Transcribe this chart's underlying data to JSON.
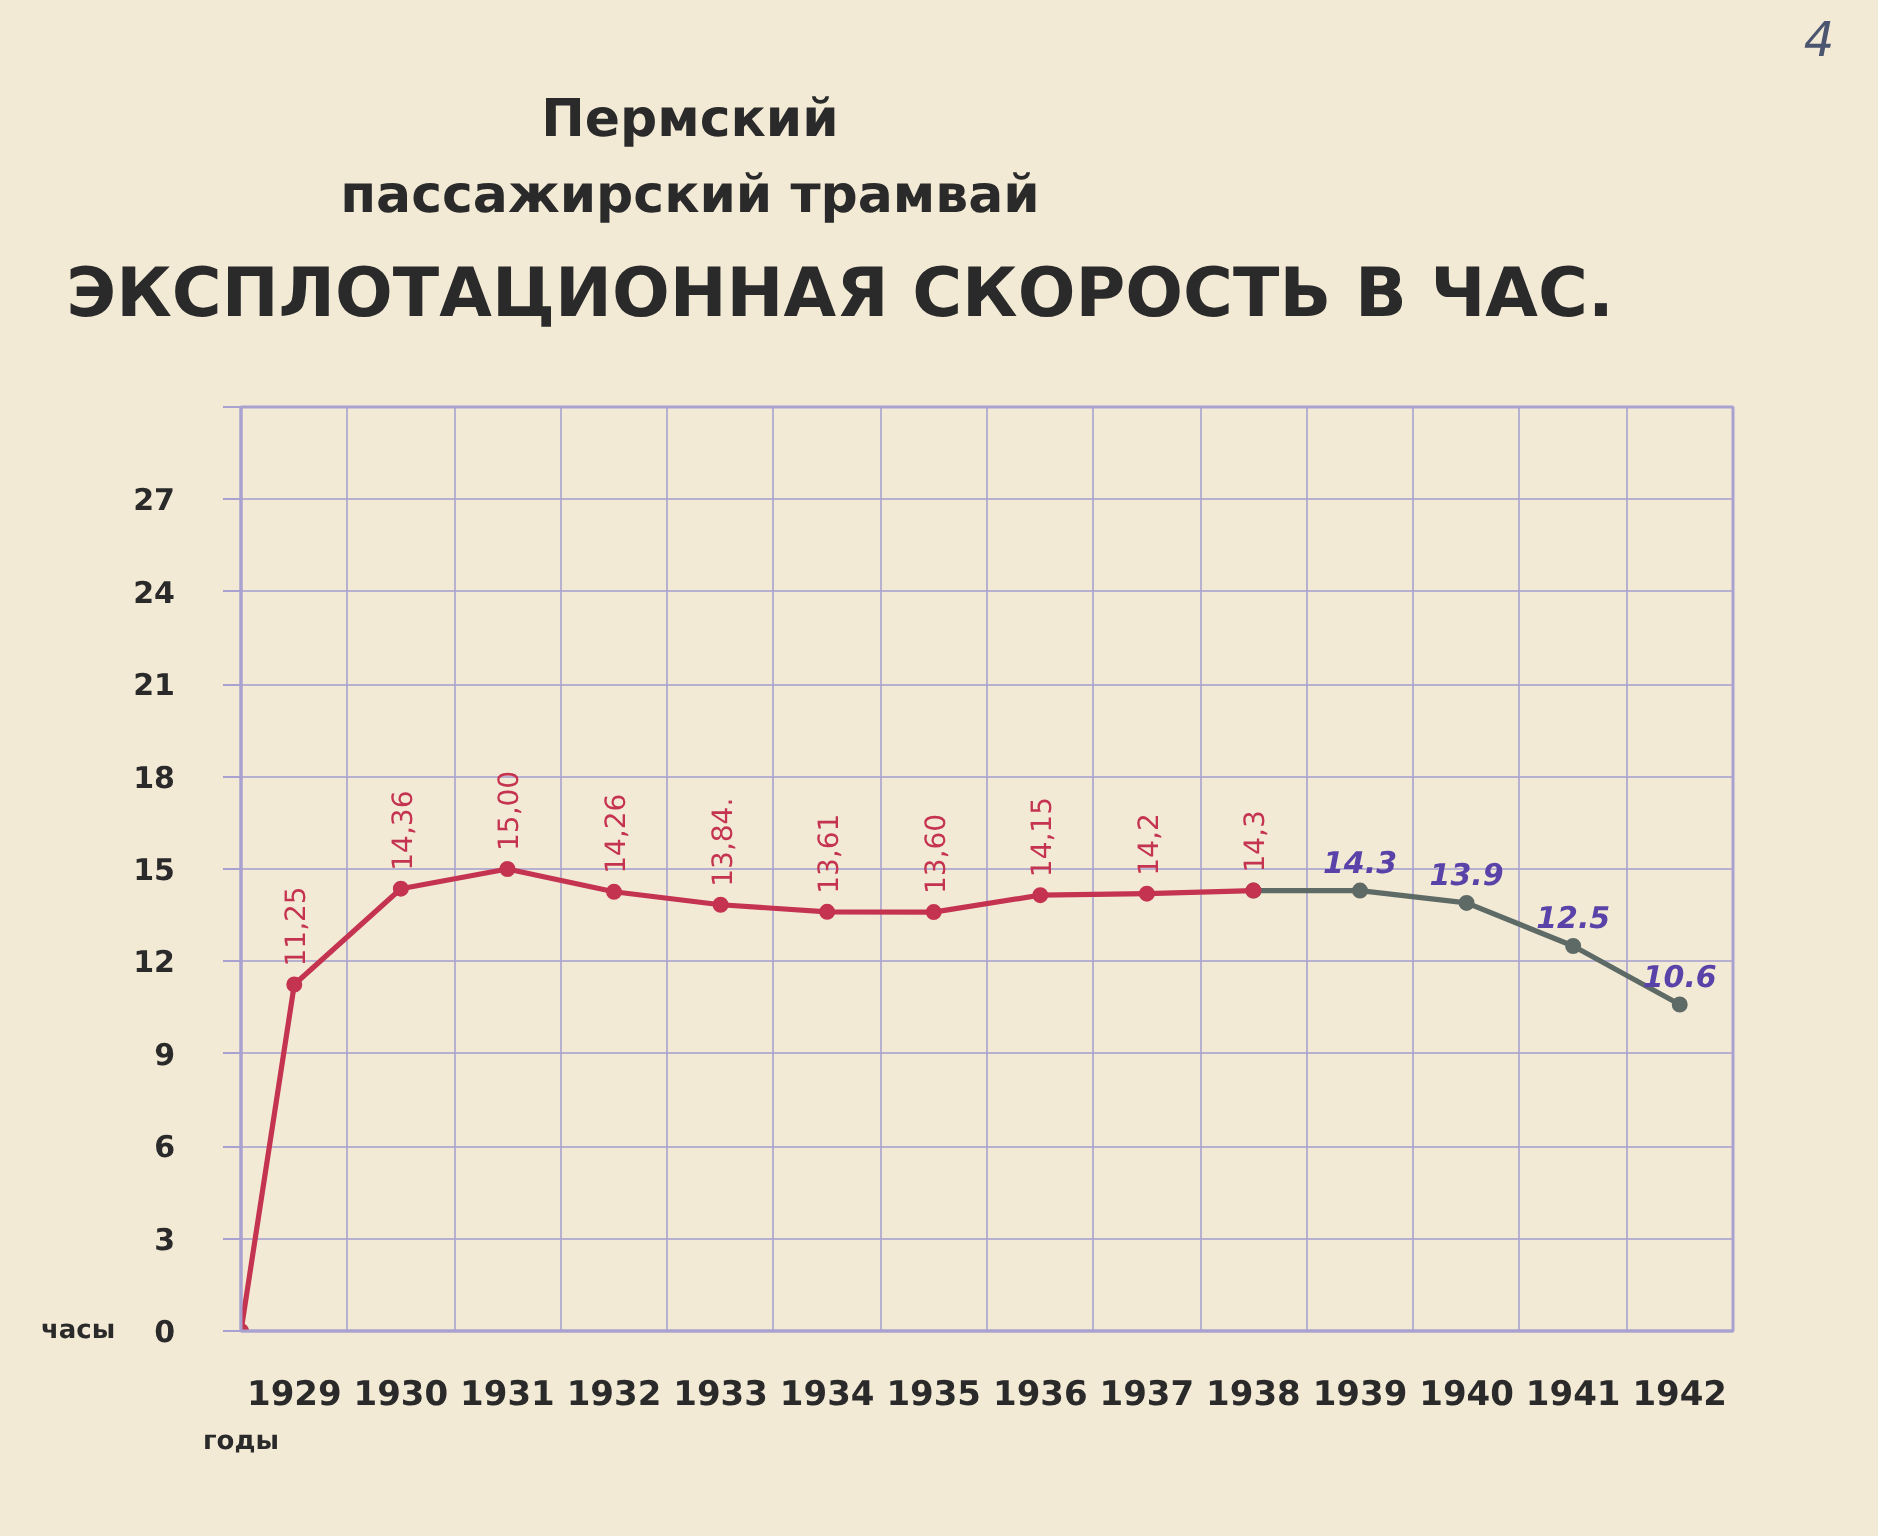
{
  "chart_data": {
    "type": "line",
    "title": "Пермский\nпассажирский трамвай",
    "subtitle": "ЭКСПЛОТАЦИОННАЯ СКОРОСТЬ В ЧАС.",
    "xlabel": "годы",
    "ylabel": "часы",
    "annotations": [
      "4"
    ],
    "xlim": [
      1928.5,
      1942.5
    ],
    "xticks": [
      1929,
      1930,
      1931,
      1932,
      1933,
      1934,
      1935,
      1936,
      1937,
      1938,
      1939,
      1940,
      1941,
      1942
    ],
    "ylim": [
      0,
      30
    ],
    "yticks": [
      0,
      3,
      6,
      9,
      12,
      15,
      18,
      21,
      24,
      27,
      {
        "value": 30,
        "label": null
      }
    ],
    "grid": true,
    "marker": "circle",
    "line_style": "solid",
    "series": [
      {
        "color": "#c4334f",
        "x": [
          1928.5,
          1929,
          1930,
          1931,
          1932,
          1933,
          1934,
          1935,
          1936,
          1937,
          1938
        ],
        "values": [
          0,
          11.25,
          14.36,
          15.0,
          14.26,
          13.84,
          13.61,
          13.6,
          14.15,
          14.2,
          14.3
        ],
        "value_labels": [
          null,
          "11,25",
          "14,36",
          "15,00",
          "14,26",
          "13,84.",
          "13,61",
          "13,60",
          "14,15",
          "14,2",
          "14,3"
        ]
      },
      {
        "color": "#5e6a66",
        "x": [
          1938,
          1939,
          1940,
          1941,
          1942
        ],
        "values": [
          14.3,
          14.3,
          13.9,
          12.5,
          10.6
        ],
        "value_labels": [
          null,
          "14.3",
          "13.9",
          "12.5",
          "10.6"
        ]
      }
    ]
  }
}
